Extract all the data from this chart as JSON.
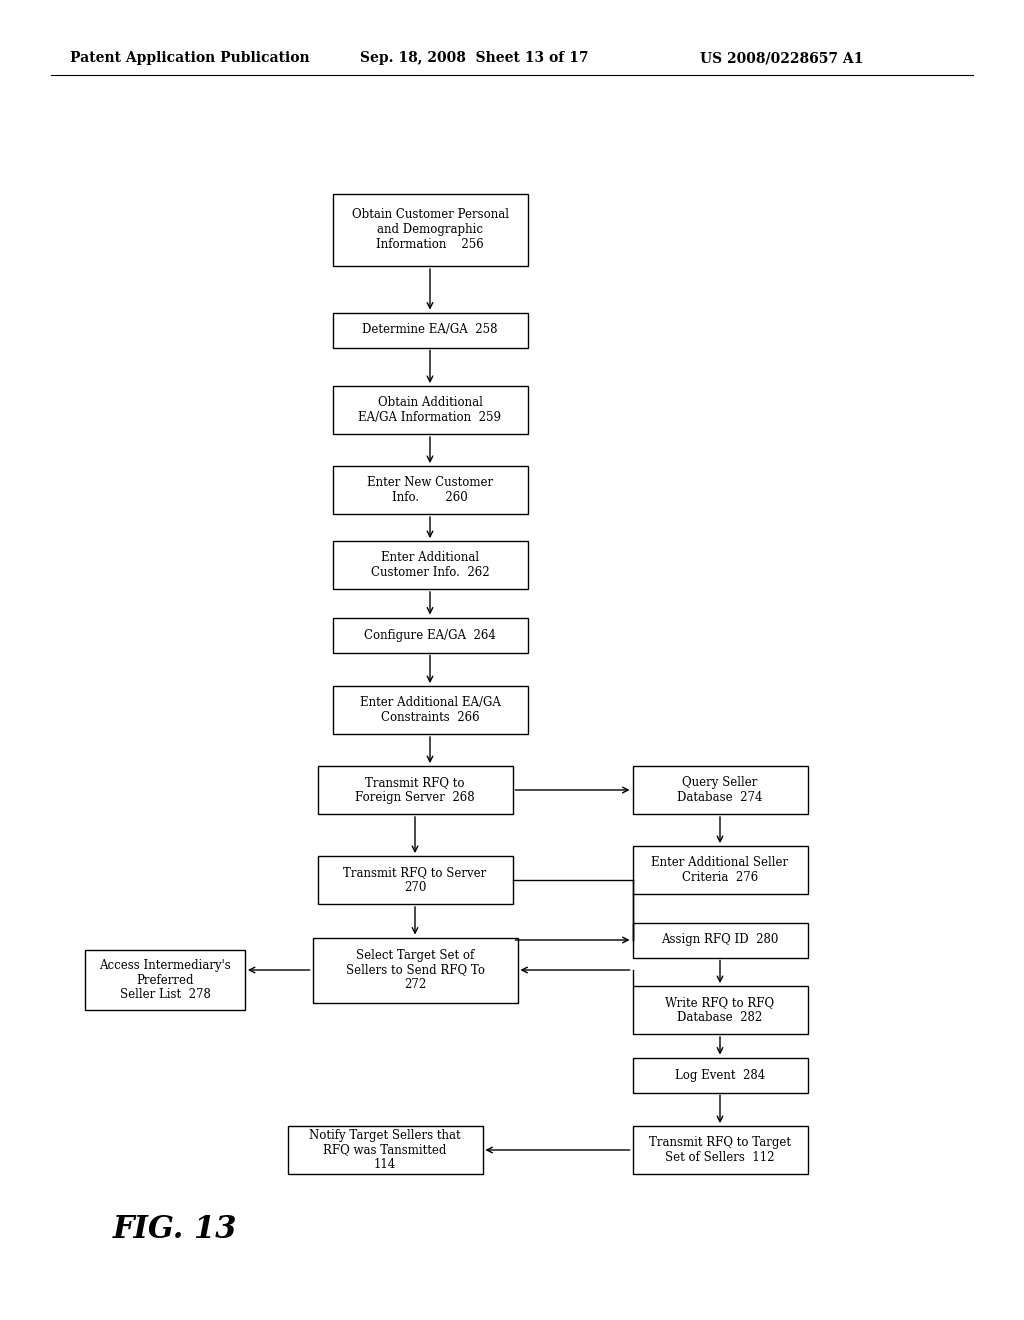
{
  "header_left": "Patent Application Publication",
  "header_mid": "Sep. 18, 2008  Sheet 13 of 17",
  "header_right": "US 2008/0228657 A1",
  "fig_label": "FIG. 13",
  "background_color": "#ffffff"
}
